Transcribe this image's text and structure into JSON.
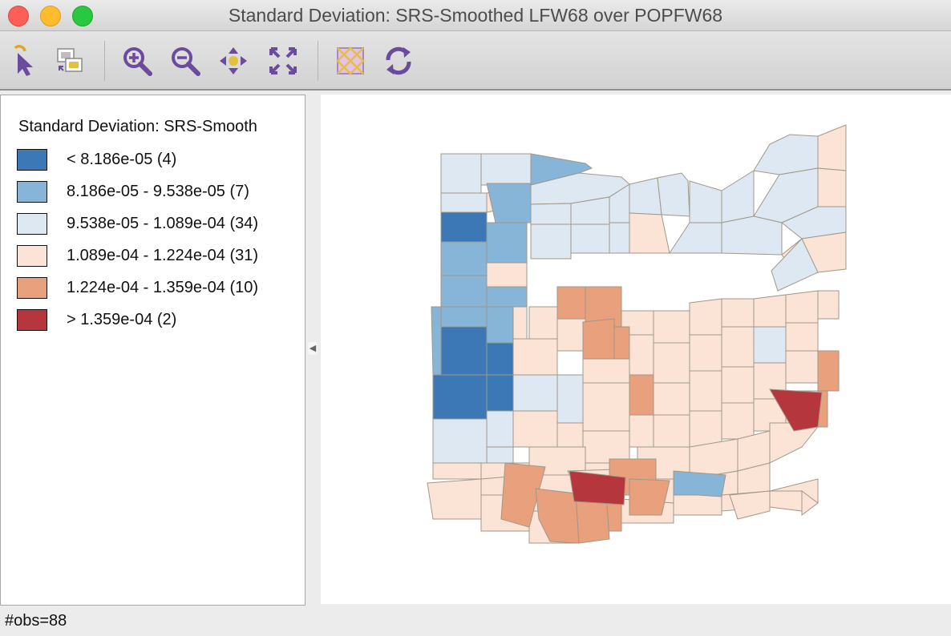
{
  "window": {
    "title": "Standard Deviation: SRS-Smoothed LFW68 over POPFW68"
  },
  "toolbar": {
    "tools": [
      {
        "name": "select-icon",
        "label": "Select"
      },
      {
        "name": "copy-map-icon",
        "label": "Copy"
      },
      {
        "name": "zoom-in-icon",
        "label": "Zoom In"
      },
      {
        "name": "zoom-out-icon",
        "label": "Zoom Out"
      },
      {
        "name": "pan-icon",
        "label": "Pan"
      },
      {
        "name": "fit-to-window-icon",
        "label": "Fit"
      },
      {
        "name": "selectable-shapes-icon",
        "label": "Shapes"
      },
      {
        "name": "refresh-icon",
        "label": "Refresh"
      }
    ]
  },
  "legend": {
    "title": "Standard Deviation: SRS-Smooth",
    "items": [
      {
        "label": "< 8.186e-05 (4)",
        "color": "#3b78b5"
      },
      {
        "label": "8.186e-05 - 9.538e-05 (7)",
        "color": "#86b5d8"
      },
      {
        "label": "9.538e-05 - 1.089e-04 (34)",
        "color": "#dde8f2"
      },
      {
        "label": "1.089e-04 - 1.224e-04 (31)",
        "color": "#fbe3d6"
      },
      {
        "label": "1.224e-04 - 1.359e-04 (10)",
        "color": "#e9a07c"
      },
      {
        "label": "> 1.359e-04 (2)",
        "color": "#b5363c"
      }
    ]
  },
  "map": {
    "border_color": "#a09888"
  },
  "status": {
    "text": "#obs=88"
  }
}
